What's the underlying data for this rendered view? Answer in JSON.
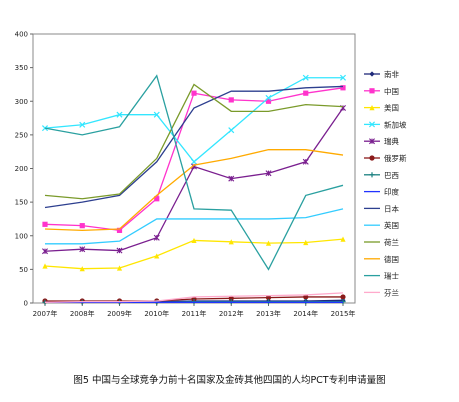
{
  "caption": "图5  中国与全球竞争力前十名国家及金砖其他四国的人均PCT专利申请量图",
  "chart_data": {
    "type": "line",
    "categories": [
      "2007年",
      "2008年",
      "2009年",
      "2010年",
      "2011年",
      "2012年",
      "2013年",
      "2014年",
      "2015年"
    ],
    "ylim": [
      0,
      400
    ],
    "yticks": [
      0,
      50,
      100,
      150,
      200,
      250,
      300,
      350,
      400
    ],
    "grid": false,
    "legend_position": "right",
    "series": [
      {
        "name": "南非",
        "color": "#1f2a7a",
        "marker": "diamond",
        "values": [
          2,
          2,
          2,
          2,
          3,
          3,
          3,
          3,
          4
        ]
      },
      {
        "name": "中国",
        "color": "#ff33cc",
        "marker": "square",
        "values": [
          117,
          115,
          108,
          155,
          312,
          302,
          300,
          312,
          320
        ]
      },
      {
        "name": "美国",
        "color": "#ffe600",
        "marker": "triangle",
        "values": [
          55,
          51,
          52,
          70,
          93,
          91,
          89,
          90,
          95
        ]
      },
      {
        "name": "新加坡",
        "color": "#33e6ff",
        "marker": "x",
        "values": [
          260,
          265,
          280,
          280,
          210,
          257,
          305,
          335,
          335
        ]
      },
      {
        "name": "瑞典",
        "color": "#7a1f8f",
        "marker": "star",
        "values": [
          77,
          80,
          78,
          97,
          203,
          185,
          193,
          210,
          290
        ]
      },
      {
        "name": "俄罗斯",
        "color": "#8b1a1a",
        "marker": "circle",
        "values": [
          3,
          3,
          3,
          3,
          6,
          7,
          8,
          9,
          9
        ]
      },
      {
        "name": "巴西",
        "color": "#1a8080",
        "marker": "plus",
        "values": [
          1,
          1,
          1,
          1,
          2,
          2,
          2,
          2,
          2
        ]
      },
      {
        "name": "印度",
        "color": "#2233ff",
        "marker": "dash",
        "values": [
          1,
          1,
          1,
          1,
          1,
          1,
          1,
          1,
          1
        ]
      },
      {
        "name": "日本",
        "color": "#2d3f8f",
        "marker": "dash",
        "values": [
          142,
          150,
          160,
          210,
          290,
          315,
          315,
          320,
          322
        ]
      },
      {
        "name": "英国",
        "color": "#33ccff",
        "marker": "dash",
        "values": [
          88,
          88,
          92,
          125,
          125,
          125,
          125,
          127,
          140
        ]
      },
      {
        "name": "荷兰",
        "color": "#7a9a2a",
        "marker": "dash",
        "values": [
          160,
          155,
          162,
          215,
          325,
          285,
          285,
          295,
          292
        ]
      },
      {
        "name": "德国",
        "color": "#ffaa00",
        "marker": "dash",
        "values": [
          110,
          108,
          110,
          160,
          205,
          215,
          228,
          228,
          220
        ]
      },
      {
        "name": "瑞士",
        "color": "#2aa0a0",
        "marker": "dash",
        "values": [
          260,
          250,
          262,
          338,
          140,
          138,
          50,
          160,
          175
        ]
      },
      {
        "name": "芬兰",
        "color": "#ffaacc",
        "marker": "dash",
        "values": [
          1,
          2,
          2,
          3,
          9,
          10,
          11,
          12,
          15
        ]
      }
    ]
  }
}
